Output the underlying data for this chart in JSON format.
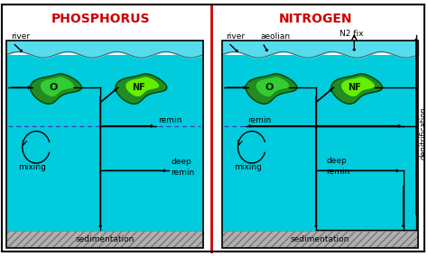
{
  "ocean_color": "#00CCDD",
  "ocean_top_color": "#55DDEE",
  "sediment_color": "#B0B0B0",
  "bg_color": "#FFFFFF",
  "border_color": "#000000",
  "divider_color": "#CC0000",
  "title_left": "PHOSPHORUS",
  "title_right": "NITROGEN",
  "title_color": "#CC0000",
  "blob_O_outer": "#228B22",
  "blob_O_inner": "#33CC33",
  "blob_NF_outer": "#228B22",
  "blob_NF_inner": "#66EE00",
  "arrow_color": "#000000",
  "dashed_color": "#4444BB",
  "text_color": "#000000",
  "remin_text": "remin",
  "deep_remin_text": "deep\nremin",
  "sedimentation_text": "sedimentation",
  "mixing_text": "mixing",
  "river_text": "river",
  "aeolian_text": "aeolian",
  "n2fix_text": "N2 fix",
  "denitrification_text": "denitrification",
  "figsize": [
    4.74,
    2.84
  ],
  "dpi": 100
}
